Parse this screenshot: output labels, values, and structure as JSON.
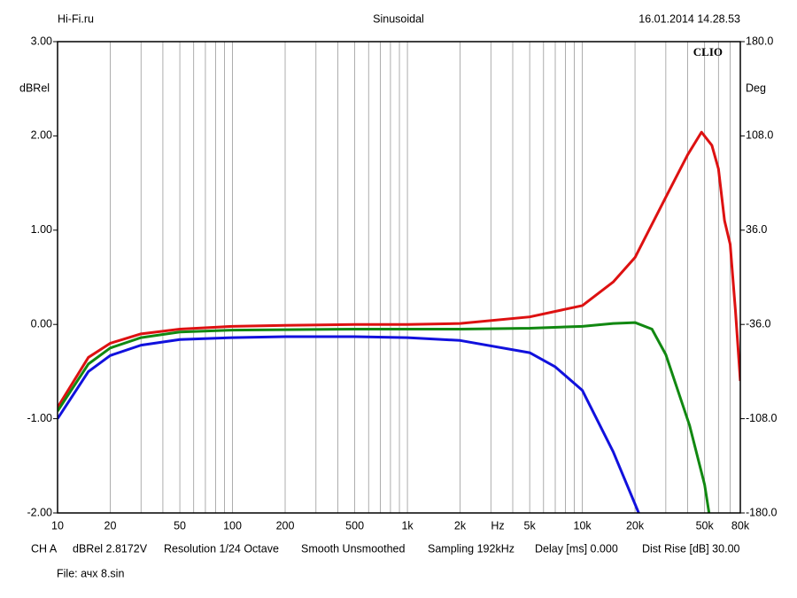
{
  "chart_data": {
    "type": "line",
    "header": {
      "left": "Hi-Fi.ru",
      "center": "Sinusoidal",
      "right": "16.01.2014 14.28.53"
    },
    "brand": "CLIO",
    "ylabel": "dBRel",
    "y2label": "Deg",
    "xunit": "Hz",
    "xscale": "log",
    "xlim": [
      10,
      80000
    ],
    "xticks": [
      10,
      20,
      50,
      100,
      200,
      500,
      {
        "value": 1000,
        "label": "1k"
      },
      {
        "value": 2000,
        "label": "2k"
      },
      {
        "value": 5000,
        "label": "5k"
      },
      {
        "value": 10000,
        "label": "10k"
      },
      {
        "value": 20000,
        "label": "20k"
      },
      {
        "value": 50000,
        "label": "50k"
      },
      {
        "value": 80000,
        "label": "80k"
      }
    ],
    "x_minor_ticks": [
      30,
      40,
      60,
      70,
      80,
      90,
      300,
      400,
      600,
      700,
      800,
      900,
      3000,
      4000,
      6000,
      7000,
      8000,
      9000,
      30000,
      40000,
      60000,
      70000
    ],
    "ylim": [
      -2,
      3
    ],
    "yticks": [
      {
        "value": -2,
        "label": "-2.00"
      },
      {
        "value": -1,
        "label": "-1.00"
      },
      {
        "value": 0,
        "label": "0.00"
      },
      {
        "value": 1,
        "label": "1.00"
      },
      {
        "value": 2,
        "label": "2.00"
      },
      {
        "value": 3,
        "label": "3.00"
      }
    ],
    "y2lim": [
      -180,
      180
    ],
    "y2ticks": [
      {
        "value": -180,
        "label": "-180.0"
      },
      {
        "value": -108,
        "label": "-108.0"
      },
      {
        "value": -36,
        "label": "-36.0"
      },
      {
        "value": 36,
        "label": "36.0"
      },
      {
        "value": 108,
        "label": "108.0"
      },
      {
        "value": 180,
        "label": "180.0"
      }
    ],
    "grid": true,
    "series": [
      {
        "color": "#dd1111",
        "x": [
          10,
          15,
          20,
          30,
          50,
          100,
          200,
          500,
          1000,
          2000,
          5000,
          10000,
          15000,
          20000,
          30000,
          40000,
          48000,
          55000,
          60000,
          65000,
          70000,
          75000,
          80000
        ],
        "values": [
          -0.88,
          -0.35,
          -0.2,
          -0.1,
          -0.05,
          -0.02,
          -0.01,
          0,
          0,
          0.01,
          0.08,
          0.2,
          0.45,
          0.71,
          1.35,
          1.8,
          2.04,
          1.9,
          1.65,
          1.1,
          0.85,
          0.15,
          -0.6
        ]
      },
      {
        "color": "#118811",
        "x": [
          10,
          15,
          20,
          30,
          50,
          100,
          500,
          1000,
          2000,
          5000,
          10000,
          15000,
          20000,
          25000,
          30000,
          41000,
          50000,
          53000
        ],
        "values": [
          -0.92,
          -0.42,
          -0.25,
          -0.14,
          -0.08,
          -0.06,
          -0.05,
          -0.05,
          -0.05,
          -0.04,
          -0.02,
          0.01,
          0.02,
          -0.05,
          -0.32,
          -1.07,
          -1.7,
          -2.0
        ]
      },
      {
        "color": "#1111dd",
        "x": [
          10,
          15,
          20,
          30,
          50,
          100,
          200,
          500,
          1000,
          2000,
          5000,
          7000,
          10000,
          15000,
          21000
        ],
        "values": [
          -1.0,
          -0.5,
          -0.33,
          -0.22,
          -0.16,
          -0.14,
          -0.13,
          -0.13,
          -0.14,
          -0.17,
          -0.3,
          -0.45,
          -0.7,
          -1.35,
          -2.0
        ]
      }
    ],
    "footer": [
      "CH A",
      "dBRel 2.8172V",
      "Resolution 1/24 Octave",
      "Smooth Unsmoothed",
      "Sampling 192kHz",
      "Delay [ms] 0.000",
      "Dist Rise [dB] 30.00"
    ],
    "file": "File: ачх 8.sin"
  }
}
